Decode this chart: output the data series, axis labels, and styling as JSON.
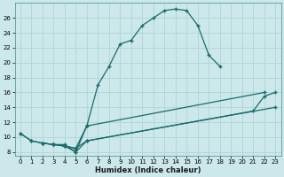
{
  "xlabel": "Humidex (Indice chaleur)",
  "bg_color": "#cce8ea",
  "line_color": "#1a6b6b",
  "grid_color": "#b0d4d6",
  "xlim": [
    -0.5,
    23.5
  ],
  "ylim": [
    7.5,
    28
  ],
  "xticks": [
    0,
    1,
    2,
    3,
    4,
    5,
    6,
    7,
    8,
    9,
    10,
    11,
    12,
    13,
    14,
    15,
    16,
    17,
    18,
    19,
    20,
    21,
    22,
    23
  ],
  "yticks": [
    8,
    10,
    12,
    14,
    16,
    18,
    20,
    22,
    24,
    26
  ],
  "line1_x": [
    0,
    1,
    2,
    3,
    4,
    5,
    6,
    7,
    8,
    9,
    10,
    11,
    12,
    13,
    14,
    15,
    16,
    17,
    18
  ],
  "line1_y": [
    10.5,
    9.5,
    9.2,
    9.0,
    9.0,
    8.0,
    11.5,
    17.0,
    19.5,
    22.5,
    23.0,
    25.0,
    26.0,
    27.0,
    27.2,
    27.0,
    25.0,
    21.0,
    19.5
  ],
  "line2_x": [
    0,
    1,
    2,
    3,
    4,
    5,
    6,
    22
  ],
  "line2_y": [
    10.5,
    9.5,
    9.2,
    9.0,
    8.8,
    8.5,
    11.5,
    16.0
  ],
  "line3_x": [
    2,
    3,
    4,
    5,
    6,
    23
  ],
  "line3_y": [
    9.2,
    9.0,
    8.8,
    8.5,
    9.5,
    14.0
  ],
  "line4_x": [
    3,
    4,
    5,
    6,
    21,
    22,
    23
  ],
  "line4_y": [
    9.0,
    8.8,
    8.0,
    9.5,
    13.5,
    15.5,
    16.0
  ]
}
